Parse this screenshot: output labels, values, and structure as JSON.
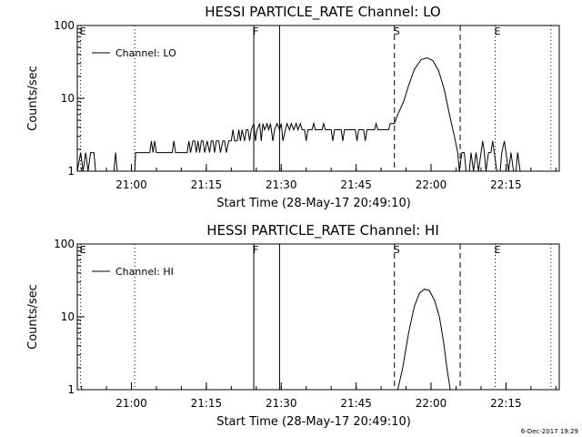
{
  "footer": {
    "timestamp": "6-Dec-2017 19:29"
  },
  "chart_data": [
    {
      "type": "line",
      "title": "HESSI PARTICLE_RATE Channel: LO",
      "xlabel": "Start Time (28-May-17 20:49:10)",
      "ylabel": "Counts/sec",
      "y_scale": "log",
      "ylim": [
        1,
        100
      ],
      "xlim": [
        "20:49:10",
        "22:25:40"
      ],
      "x_ticks": [
        "21:00",
        "21:15",
        "21:30",
        "21:45",
        "22:00",
        "22:15"
      ],
      "y_ticks": [
        "1",
        "10",
        "100"
      ],
      "legend": {
        "position": "top-left",
        "entries": [
          "Channel: LO"
        ]
      },
      "markers": [
        {
          "time": "20:49:50",
          "label": "E",
          "style": "dotted"
        },
        {
          "time": "21:00:40",
          "label": "",
          "style": "dotted"
        },
        {
          "time": "21:24:30",
          "label": "F",
          "style": "solid"
        },
        {
          "time": "21:29:40",
          "label": "",
          "style": "solid"
        },
        {
          "time": "21:52:40",
          "label": "S",
          "style": "dashed"
        },
        {
          "time": "22:05:50",
          "label": "",
          "style": "dashed"
        },
        {
          "time": "22:12:50",
          "label": "E",
          "style": "dotted"
        },
        {
          "time": "22:24:00",
          "label": "",
          "style": "dotted"
        }
      ],
      "series": [
        {
          "points": [
            [
              "20:49:10",
              1
            ],
            [
              "20:49:50",
              1.8
            ],
            [
              "20:50:20",
              1
            ],
            [
              "20:50:50",
              1.8
            ],
            [
              "20:51:20",
              1
            ],
            [
              "20:51:50",
              1.8
            ],
            [
              "20:52:30",
              1.8
            ],
            [
              "20:52:50",
              1
            ],
            [
              "20:56:30",
              1
            ],
            [
              "20:56:50",
              1.8
            ],
            [
              "20:57:10",
              1
            ],
            [
              "21:00:40",
              1
            ],
            [
              "21:00:50",
              1.8
            ],
            [
              "21:03:40",
              1.8
            ],
            [
              "21:04:00",
              2.6
            ],
            [
              "21:04:20",
              1.8
            ],
            [
              "21:04:40",
              2.6
            ],
            [
              "21:05:00",
              1.8
            ],
            [
              "21:08:10",
              1.8
            ],
            [
              "21:08:30",
              2.6
            ],
            [
              "21:08:50",
              1.8
            ],
            [
              "21:11:10",
              1.8
            ],
            [
              "21:11:30",
              2.6
            ],
            [
              "21:11:50",
              1.8
            ],
            [
              "21:12:20",
              2.6
            ],
            [
              "21:12:40",
              2.6
            ],
            [
              "21:13:00",
              1.8
            ],
            [
              "21:13:20",
              2.6
            ],
            [
              "21:13:40",
              1.8
            ],
            [
              "21:14:00",
              2.6
            ],
            [
              "21:14:20",
              2.6
            ],
            [
              "21:14:40",
              1.8
            ],
            [
              "21:15:10",
              2.6
            ],
            [
              "21:15:40",
              1.8
            ],
            [
              "21:16:00",
              2.6
            ],
            [
              "21:16:20",
              2.6
            ],
            [
              "21:16:40",
              1.8
            ],
            [
              "21:17:00",
              2.6
            ],
            [
              "21:17:30",
              2.6
            ],
            [
              "21:17:50",
              1.8
            ],
            [
              "21:18:20",
              2.6
            ],
            [
              "21:18:40",
              2.6
            ],
            [
              "21:19:00",
              1.8
            ],
            [
              "21:19:30",
              2.6
            ],
            [
              "21:20:00",
              2.6
            ],
            [
              "21:20:20",
              3.7
            ],
            [
              "21:20:40",
              2.6
            ],
            [
              "21:21:10",
              2.6
            ],
            [
              "21:21:30",
              3.7
            ],
            [
              "21:21:50",
              2.6
            ],
            [
              "21:22:10",
              3.7
            ],
            [
              "21:22:40",
              2.6
            ],
            [
              "21:23:00",
              3.7
            ],
            [
              "21:23:20",
              3.7
            ],
            [
              "21:23:40",
              2.6
            ],
            [
              "21:24:00",
              3.7
            ],
            [
              "21:24:30",
              4.5
            ],
            [
              "21:24:50",
              2.6
            ],
            [
              "21:25:10",
              3.7
            ],
            [
              "21:25:40",
              4.5
            ],
            [
              "21:26:00",
              2.6
            ],
            [
              "21:26:20",
              4.5
            ],
            [
              "21:26:40",
              3.7
            ],
            [
              "21:27:10",
              4.5
            ],
            [
              "21:27:30",
              3.7
            ],
            [
              "21:27:50",
              4.5
            ],
            [
              "21:28:20",
              2.6
            ],
            [
              "21:28:40",
              3.7
            ],
            [
              "21:29:10",
              4.5
            ],
            [
              "21:29:40",
              3.7
            ],
            [
              "21:30:00",
              4.5
            ],
            [
              "21:30:20",
              2.6
            ],
            [
              "21:30:50",
              3.7
            ],
            [
              "21:31:10",
              4.5
            ],
            [
              "21:31:40",
              3.7
            ],
            [
              "21:32:00",
              4.5
            ],
            [
              "21:32:30",
              3.7
            ],
            [
              "21:33:00",
              4.5
            ],
            [
              "21:33:20",
              3.7
            ],
            [
              "21:33:50",
              4.5
            ],
            [
              "21:34:10",
              3.7
            ],
            [
              "21:34:40",
              3.7
            ],
            [
              "21:35:00",
              2.6
            ],
            [
              "21:35:20",
              3.7
            ],
            [
              "21:36:10",
              3.7
            ],
            [
              "21:36:30",
              4.5
            ],
            [
              "21:36:50",
              3.7
            ],
            [
              "21:38:10",
              3.7
            ],
            [
              "21:38:30",
              4.5
            ],
            [
              "21:38:50",
              3.7
            ],
            [
              "21:40:00",
              3.7
            ],
            [
              "21:40:20",
              2.6
            ],
            [
              "21:40:40",
              3.7
            ],
            [
              "21:42:00",
              3.7
            ],
            [
              "21:42:20",
              2.6
            ],
            [
              "21:42:40",
              3.7
            ],
            [
              "21:44:50",
              3.7
            ],
            [
              "21:45:10",
              2.6
            ],
            [
              "21:45:30",
              3.7
            ],
            [
              "21:46:30",
              3.7
            ],
            [
              "21:46:50",
              2.6
            ],
            [
              "21:47:10",
              3.7
            ],
            [
              "21:48:40",
              3.7
            ],
            [
              "21:49:00",
              4.5
            ],
            [
              "21:49:20",
              3.7
            ],
            [
              "21:51:30",
              3.7
            ],
            [
              "21:51:50",
              4.5
            ],
            [
              "21:52:40",
              4.5
            ],
            [
              "21:53:20",
              6
            ],
            [
              "21:54:30",
              9
            ],
            [
              "21:55:30",
              15
            ],
            [
              "21:56:40",
              25
            ],
            [
              "21:58:00",
              34
            ],
            [
              "21:59:10",
              36
            ],
            [
              "22:00:20",
              33
            ],
            [
              "22:01:30",
              24
            ],
            [
              "22:02:40",
              13
            ],
            [
              "22:03:40",
              6
            ],
            [
              "22:04:40",
              3
            ],
            [
              "22:05:20",
              1.8
            ],
            [
              "22:05:40",
              1
            ],
            [
              "22:06:10",
              1.8
            ],
            [
              "22:06:40",
              1.8
            ],
            [
              "22:07:00",
              1
            ],
            [
              "22:07:40",
              1
            ],
            [
              "22:08:00",
              1.8
            ],
            [
              "22:08:30",
              1
            ],
            [
              "22:09:00",
              1.8
            ],
            [
              "22:09:30",
              1
            ],
            [
              "22:10:00",
              1.8
            ],
            [
              "22:10:20",
              2.6
            ],
            [
              "22:10:40",
              1.8
            ],
            [
              "22:11:00",
              1
            ],
            [
              "22:11:30",
              1.8
            ],
            [
              "22:12:00",
              1.8
            ],
            [
              "22:12:20",
              2.6
            ],
            [
              "22:12:40",
              1.8
            ],
            [
              "22:13:10",
              1
            ],
            [
              "22:13:50",
              1
            ],
            [
              "22:14:10",
              1.8
            ],
            [
              "22:14:40",
              2.6
            ],
            [
              "22:15:00",
              1.8
            ],
            [
              "22:15:30",
              1
            ],
            [
              "22:16:00",
              1.8
            ],
            [
              "22:16:30",
              1
            ],
            [
              "22:17:00",
              1
            ],
            [
              "22:17:20",
              1.8
            ],
            [
              "22:17:50",
              1
            ]
          ]
        }
      ]
    },
    {
      "type": "line",
      "title": "HESSI PARTICLE_RATE Channel: HI",
      "xlabel": "Start Time (28-May-17 20:49:10)",
      "ylabel": "Counts/sec",
      "y_scale": "log",
      "ylim": [
        1,
        100
      ],
      "xlim": [
        "20:49:10",
        "22:25:40"
      ],
      "x_ticks": [
        "21:00",
        "21:15",
        "21:30",
        "21:45",
        "22:00",
        "22:15"
      ],
      "y_ticks": [
        "1",
        "10",
        "100"
      ],
      "legend": {
        "position": "top-left",
        "entries": [
          "Channel: HI"
        ]
      },
      "markers": [
        {
          "time": "20:49:50",
          "label": "E",
          "style": "dotted"
        },
        {
          "time": "21:00:40",
          "label": "",
          "style": "dotted"
        },
        {
          "time": "21:24:30",
          "label": "F",
          "style": "solid"
        },
        {
          "time": "21:29:40",
          "label": "",
          "style": "solid"
        },
        {
          "time": "21:52:40",
          "label": "S",
          "style": "dashed"
        },
        {
          "time": "22:05:50",
          "label": "",
          "style": "dashed"
        },
        {
          "time": "22:12:50",
          "label": "E",
          "style": "dotted"
        },
        {
          "time": "22:24:00",
          "label": "",
          "style": "dotted"
        }
      ],
      "series": [
        {
          "points": [
            [
              "21:53:20",
              1
            ],
            [
              "21:54:20",
              2
            ],
            [
              "21:55:30",
              6
            ],
            [
              "21:56:40",
              14
            ],
            [
              "21:57:40",
              21
            ],
            [
              "21:58:40",
              24
            ],
            [
              "21:59:40",
              23
            ],
            [
              "22:00:40",
              17
            ],
            [
              "22:01:40",
              10
            ],
            [
              "22:02:30",
              4.5
            ],
            [
              "22:03:10",
              2
            ],
            [
              "22:03:50",
              1
            ]
          ]
        }
      ]
    }
  ]
}
